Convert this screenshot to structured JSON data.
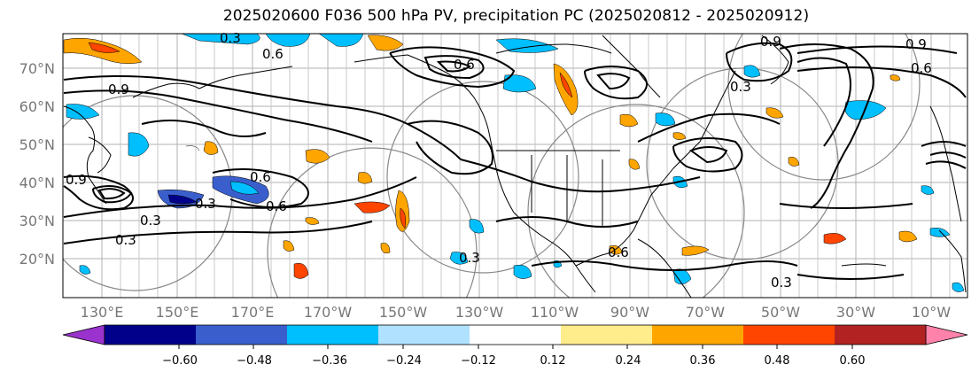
{
  "title": "2025020600 F036 500 hPa PV, precipitation PC (2025020812 - 2025020912)",
  "map": {
    "lat_labels": [
      "70°N",
      "60°N",
      "50°N",
      "40°N",
      "30°N",
      "20°N"
    ],
    "lon_labels": [
      "130°E",
      "150°E",
      "170°E",
      "170°W",
      "150°W",
      "130°W",
      "110°W",
      "90°W",
      "70°W",
      "50°W",
      "30°W",
      "10°W"
    ],
    "contour_labels": [
      "0.3",
      "0.6",
      "0.9",
      "0.6",
      "0.9",
      "0.3",
      "0.6",
      "0.3",
      "0.6",
      "0.3",
      "0.3",
      "0.9",
      "0.6",
      "0.3",
      "0.6",
      "0.3",
      "0.9"
    ],
    "coastline_color": "#000000",
    "grid_color": "#b0b0b0"
  },
  "colorbar": {
    "colors": [
      "#9a32cd",
      "#00008b",
      "#3a5fcd",
      "#00bfff",
      "#b0e2ff",
      "#ffffff",
      "#ffec8b",
      "#ffa500",
      "#ff4500",
      "#b22222",
      "#ff82ab"
    ],
    "tick_labels": [
      "−0.60",
      "−0.48",
      "−0.36",
      "−0.24",
      "−0.12",
      "0.12",
      "0.24",
      "0.36",
      "0.48",
      "0.60"
    ]
  }
}
